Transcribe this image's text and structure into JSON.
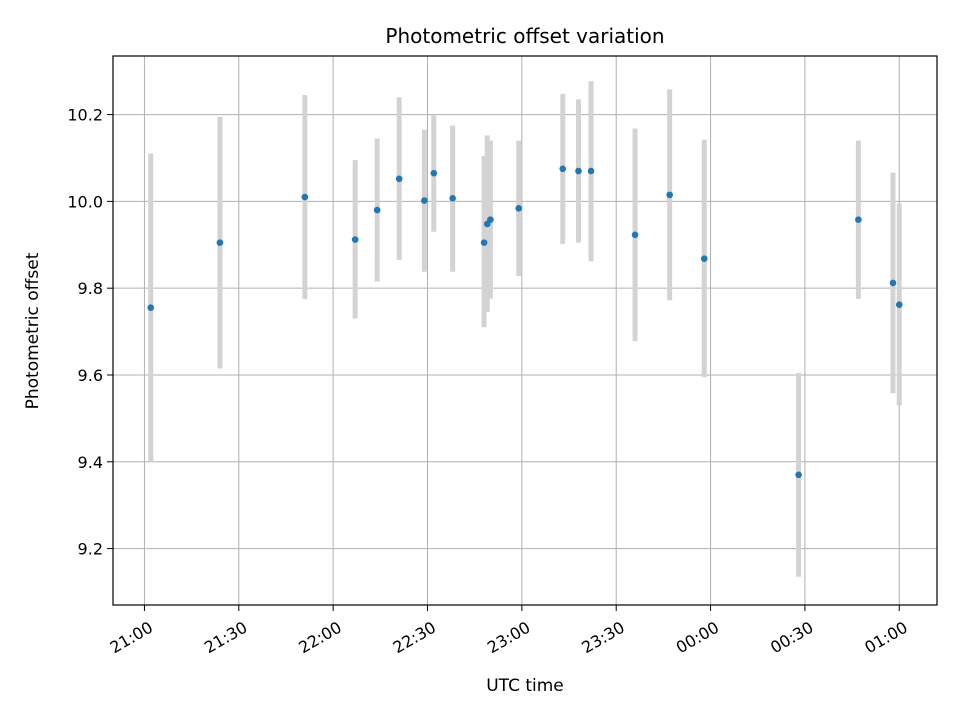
{
  "chart_data": {
    "type": "scatter",
    "title": "Photometric offset variation",
    "xlabel": "UTC time",
    "ylabel": "Photometric offset",
    "x_axis_type": "time",
    "xlim": [
      "20:50",
      "01:12"
    ],
    "ylim": [
      9.07,
      10.335
    ],
    "grid": true,
    "x_ticks": [
      "21:00",
      "21:30",
      "22:00",
      "22:30",
      "23:00",
      "23:30",
      "00:00",
      "00:30",
      "01:00"
    ],
    "y_ticks": [
      "9.2",
      "9.4",
      "9.6",
      "9.8",
      "10.0",
      "10.2"
    ],
    "y_tick_values": [
      9.2,
      9.4,
      9.6,
      9.8,
      10.0,
      10.2
    ],
    "point_color": "#1f77b4",
    "errorbar_color": "#d3d3d3",
    "points": [
      {
        "time": "21:02",
        "y": 9.755,
        "low": 9.4,
        "high": 10.11
      },
      {
        "time": "21:24",
        "y": 9.905,
        "low": 9.615,
        "high": 10.195
      },
      {
        "time": "21:51",
        "y": 10.01,
        "low": 9.775,
        "high": 10.245
      },
      {
        "time": "22:07",
        "y": 9.912,
        "low": 9.73,
        "high": 10.095
      },
      {
        "time": "22:14",
        "y": 9.98,
        "low": 9.815,
        "high": 10.145
      },
      {
        "time": "22:21",
        "y": 10.052,
        "low": 9.865,
        "high": 10.24
      },
      {
        "time": "22:29",
        "y": 10.002,
        "low": 9.838,
        "high": 10.165
      },
      {
        "time": "22:32",
        "y": 10.065,
        "low": 9.93,
        "high": 10.198
      },
      {
        "time": "22:38",
        "y": 10.007,
        "low": 9.838,
        "high": 10.175
      },
      {
        "time": "22:48",
        "y": 9.905,
        "low": 9.71,
        "high": 10.105
      },
      {
        "time": "22:49",
        "y": 9.948,
        "low": 9.745,
        "high": 10.152
      },
      {
        "time": "22:50",
        "y": 9.958,
        "low": 9.776,
        "high": 10.14
      },
      {
        "time": "22:59",
        "y": 9.984,
        "low": 9.828,
        "high": 10.14
      },
      {
        "time": "23:13",
        "y": 10.075,
        "low": 9.902,
        "high": 10.248
      },
      {
        "time": "23:18",
        "y": 10.07,
        "low": 9.905,
        "high": 10.235
      },
      {
        "time": "23:22",
        "y": 10.07,
        "low": 9.862,
        "high": 10.277
      },
      {
        "time": "23:36",
        "y": 9.923,
        "low": 9.678,
        "high": 10.168
      },
      {
        "time": "23:47",
        "y": 10.015,
        "low": 9.772,
        "high": 10.258
      },
      {
        "time": "23:58",
        "y": 9.868,
        "low": 9.595,
        "high": 10.142
      },
      {
        "time": "00:28",
        "y": 9.37,
        "low": 9.135,
        "high": 9.605
      },
      {
        "time": "00:47",
        "y": 9.958,
        "low": 9.775,
        "high": 10.14
      },
      {
        "time": "00:58",
        "y": 9.812,
        "low": 9.558,
        "high": 10.066
      },
      {
        "time": "01:00",
        "y": 9.762,
        "low": 9.53,
        "high": 9.995
      }
    ]
  }
}
